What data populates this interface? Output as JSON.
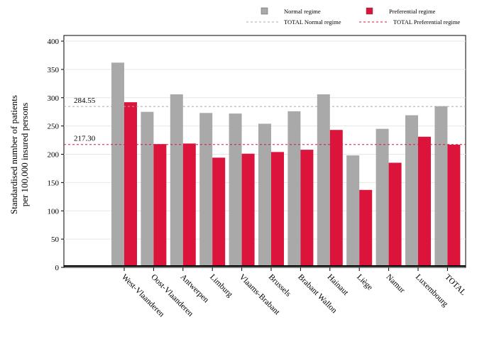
{
  "chart_data": {
    "type": "bar",
    "title": "",
    "xlabel": "",
    "ylabel_lines": [
      "Standardised number of patients",
      "per 100,000 insured persons"
    ],
    "ylim": [
      0,
      400
    ],
    "yticks": [
      0,
      50,
      100,
      150,
      200,
      250,
      300,
      350,
      400
    ],
    "grid": true,
    "legend_position": "top-right",
    "categories": [
      "West-Vlaanderen",
      "Oost-Vlaanderen",
      "Antwerpen",
      "Limburg",
      "Vlaams-Brabant",
      "Brussels",
      "Brabant Wallon",
      "Hainaut",
      "Liège",
      "Namur",
      "Luxembourg",
      "TOTAL"
    ],
    "series": [
      {
        "name": "Normal regime",
        "color": "#a9a9a9",
        "values": [
          362,
          275,
          306,
          273,
          272,
          254,
          276,
          306,
          198,
          245,
          269,
          285
        ]
      },
      {
        "name": "Preferential regime",
        "color": "#dc143c",
        "values": [
          292,
          218,
          219,
          194,
          201,
          204,
          208,
          243,
          137,
          185,
          231,
          217
        ]
      }
    ],
    "reference_lines": [
      {
        "name": "TOTAL Normal regime",
        "value": 284.55,
        "label": "284.55",
        "color": "#a9a9a9"
      },
      {
        "name": "TOTAL Preferential regime",
        "value": 217.3,
        "label": "217.30",
        "color": "#dc143c"
      }
    ]
  }
}
